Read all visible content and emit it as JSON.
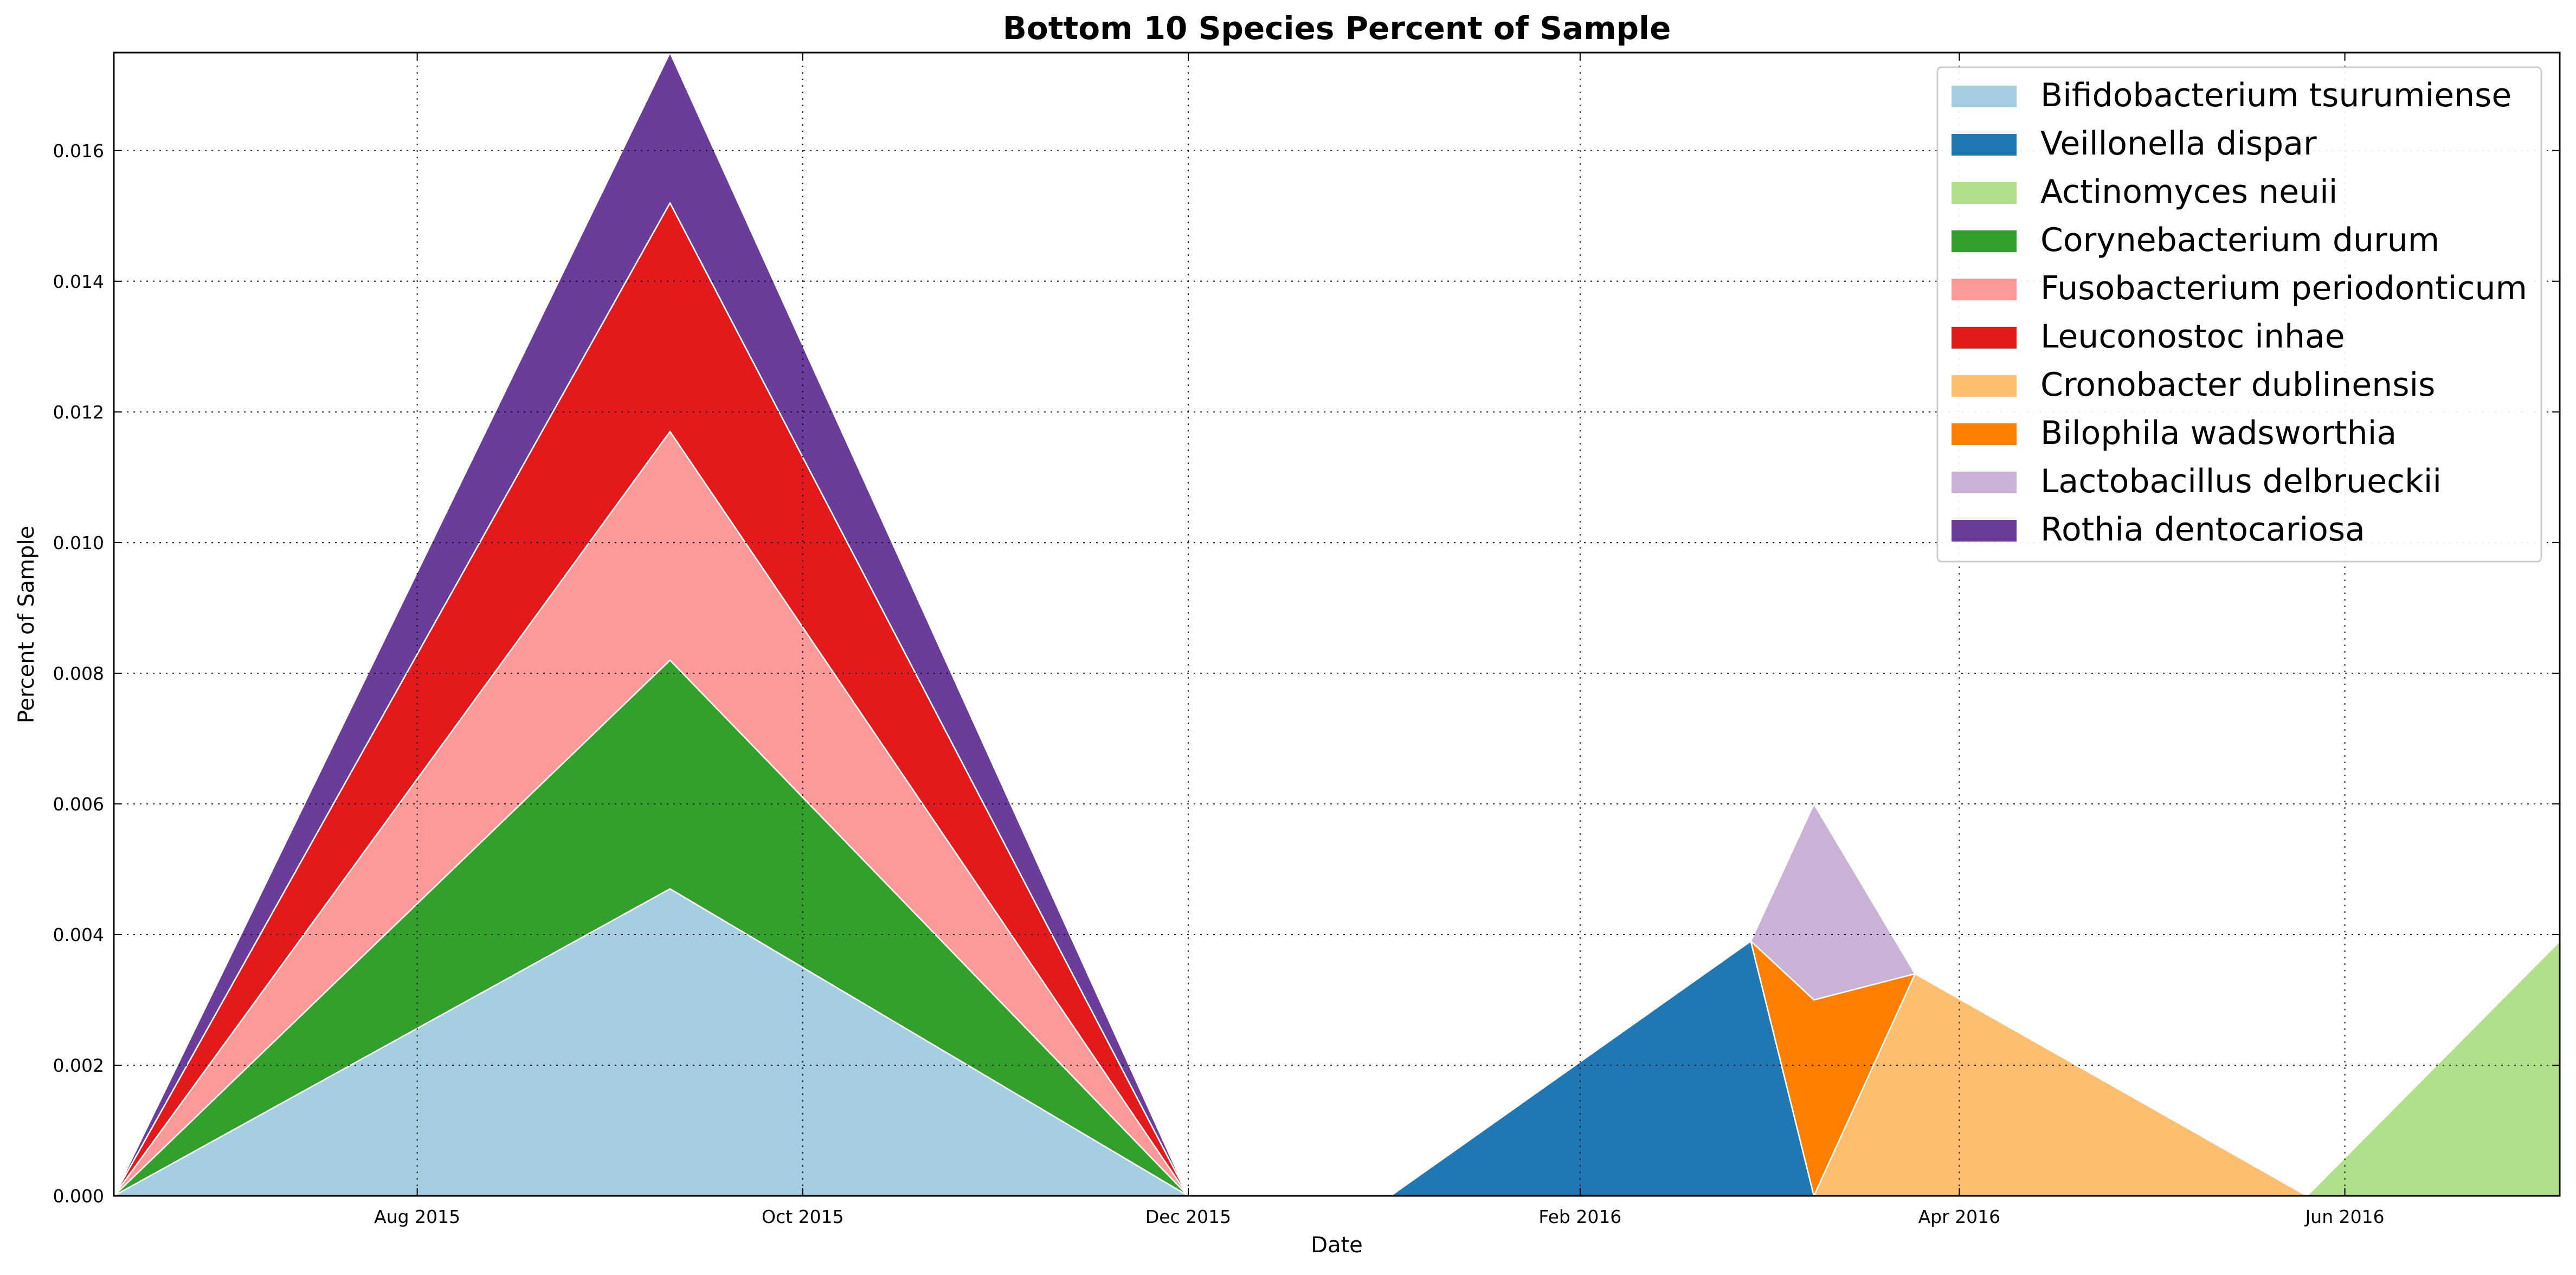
{
  "chart_data": {
    "type": "area",
    "title": "Bottom 10 Species Percent of Sample",
    "xlabel": "Date",
    "ylabel": "Percent of Sample",
    "x": [
      "2015-06-14",
      "2015-09-10",
      "2015-12-01",
      "2016-01-02",
      "2016-02-28",
      "2016-03-09",
      "2016-03-25",
      "2016-05-26",
      "2016-07-05"
    ],
    "xlim": [
      "2015-06-14",
      "2016-07-05"
    ],
    "ylim": [
      0,
      0.0175
    ],
    "xticks": [
      {
        "date": "2015-08-01",
        "label": "Aug 2015"
      },
      {
        "date": "2015-10-01",
        "label": "Oct 2015"
      },
      {
        "date": "2015-12-01",
        "label": "Dec 2015"
      },
      {
        "date": "2016-02-01",
        "label": "Feb 2016"
      },
      {
        "date": "2016-04-01",
        "label": "Apr 2016"
      },
      {
        "date": "2016-06-01",
        "label": "Jun 2016"
      }
    ],
    "yticks": [
      "0.000",
      "0.002",
      "0.004",
      "0.006",
      "0.008",
      "0.010",
      "0.012",
      "0.014",
      "0.016"
    ],
    "grid": true,
    "legend_position": "top-right",
    "series": [
      {
        "name": "Bifidobacterium tsurumiense",
        "color": "#a6cee3",
        "values": [
          0,
          0.0047,
          0,
          0,
          0,
          0,
          0,
          0,
          0
        ]
      },
      {
        "name": "Veillonella dispar",
        "color": "#1f78b4",
        "values": [
          0,
          0,
          0,
          0,
          0.0039,
          0,
          0,
          0,
          0
        ]
      },
      {
        "name": "Actinomyces neuii",
        "color": "#b2df8a",
        "values": [
          0,
          0,
          0,
          0,
          0,
          0,
          0,
          0,
          0.0039
        ]
      },
      {
        "name": "Corynebacterium durum",
        "color": "#33a02c",
        "values": [
          0,
          0.0035,
          0,
          0,
          0,
          0,
          0,
          0,
          0
        ]
      },
      {
        "name": "Fusobacterium periodonticum",
        "color": "#fb9a99",
        "values": [
          0,
          0.0035,
          0,
          0,
          0,
          0,
          0,
          0,
          0
        ]
      },
      {
        "name": "Leuconostoc inhae",
        "color": "#e31a1c",
        "values": [
          0,
          0.0035,
          0,
          0,
          0,
          0,
          0,
          0,
          0
        ]
      },
      {
        "name": "Cronobacter dublinensis",
        "color": "#fdbf6f",
        "values": [
          0,
          0,
          0,
          0,
          0,
          0,
          0.0034,
          0,
          0
        ]
      },
      {
        "name": "Bilophila wadsworthia",
        "color": "#ff7f00",
        "values": [
          0,
          0,
          0,
          0,
          0,
          0.003,
          0,
          0,
          0
        ]
      },
      {
        "name": "Lactobacillus delbrueckii",
        "color": "#cab2d6",
        "values": [
          0,
          0,
          0,
          0,
          0,
          0.003,
          0,
          0,
          0
        ]
      },
      {
        "name": "Rothia dentocariosa",
        "color": "#6a3d9a",
        "values": [
          0,
          0.0023,
          0,
          0,
          0,
          0,
          0,
          0,
          0
        ]
      }
    ]
  }
}
